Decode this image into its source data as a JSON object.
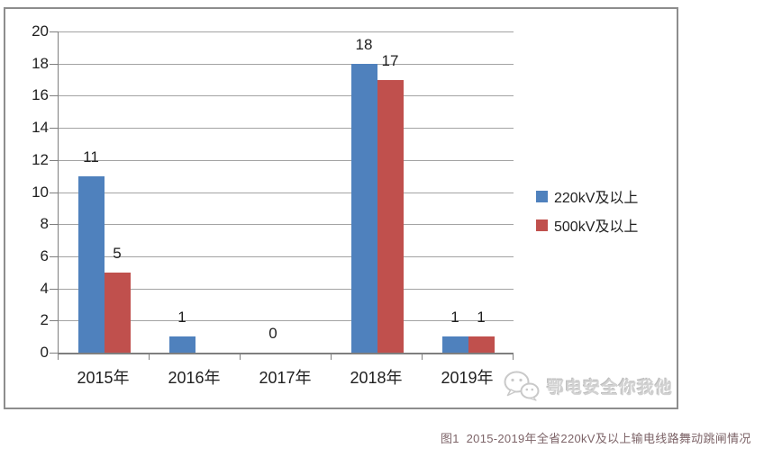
{
  "chart_data": {
    "type": "bar",
    "title": "",
    "categories": [
      "2015年",
      "2016年",
      "2017年",
      "2018年",
      "2019年"
    ],
    "series": [
      {
        "name": "220kV及以上",
        "color": "#4f81bd",
        "values": [
          11,
          1,
          0,
          18,
          1
        ],
        "data_labels": [
          "11",
          "1",
          "0",
          "18",
          "1"
        ]
      },
      {
        "name": "500kV及以上",
        "color": "#c0504d",
        "values": [
          5,
          0,
          0,
          17,
          1
        ],
        "data_labels": [
          "5",
          null,
          null,
          "17",
          "1"
        ]
      }
    ],
    "xlabel": "",
    "ylabel": "",
    "ylim": [
      0,
      20
    ],
    "ytick_step": 2,
    "ytick_labels": [
      "0",
      "2",
      "4",
      "6",
      "8",
      "10",
      "12",
      "14",
      "16",
      "18",
      "20"
    ],
    "grid": true,
    "legend_position": "middle-right"
  },
  "watermark": {
    "text": "鄂电安全你我他",
    "icon": "wechat-logo-icon"
  },
  "caption": {
    "text": "图1  2015-2019年全省220kV及以上输电线路舞动跳闸情况"
  },
  "style": {
    "frame_border": "#8d8d8d",
    "gridline": "#a3a3a3",
    "axis": "#7f7f7f",
    "label_text": "#1f1f1f",
    "watermark_text": "#d2d2d2",
    "caption_text": "#7d6468"
  }
}
